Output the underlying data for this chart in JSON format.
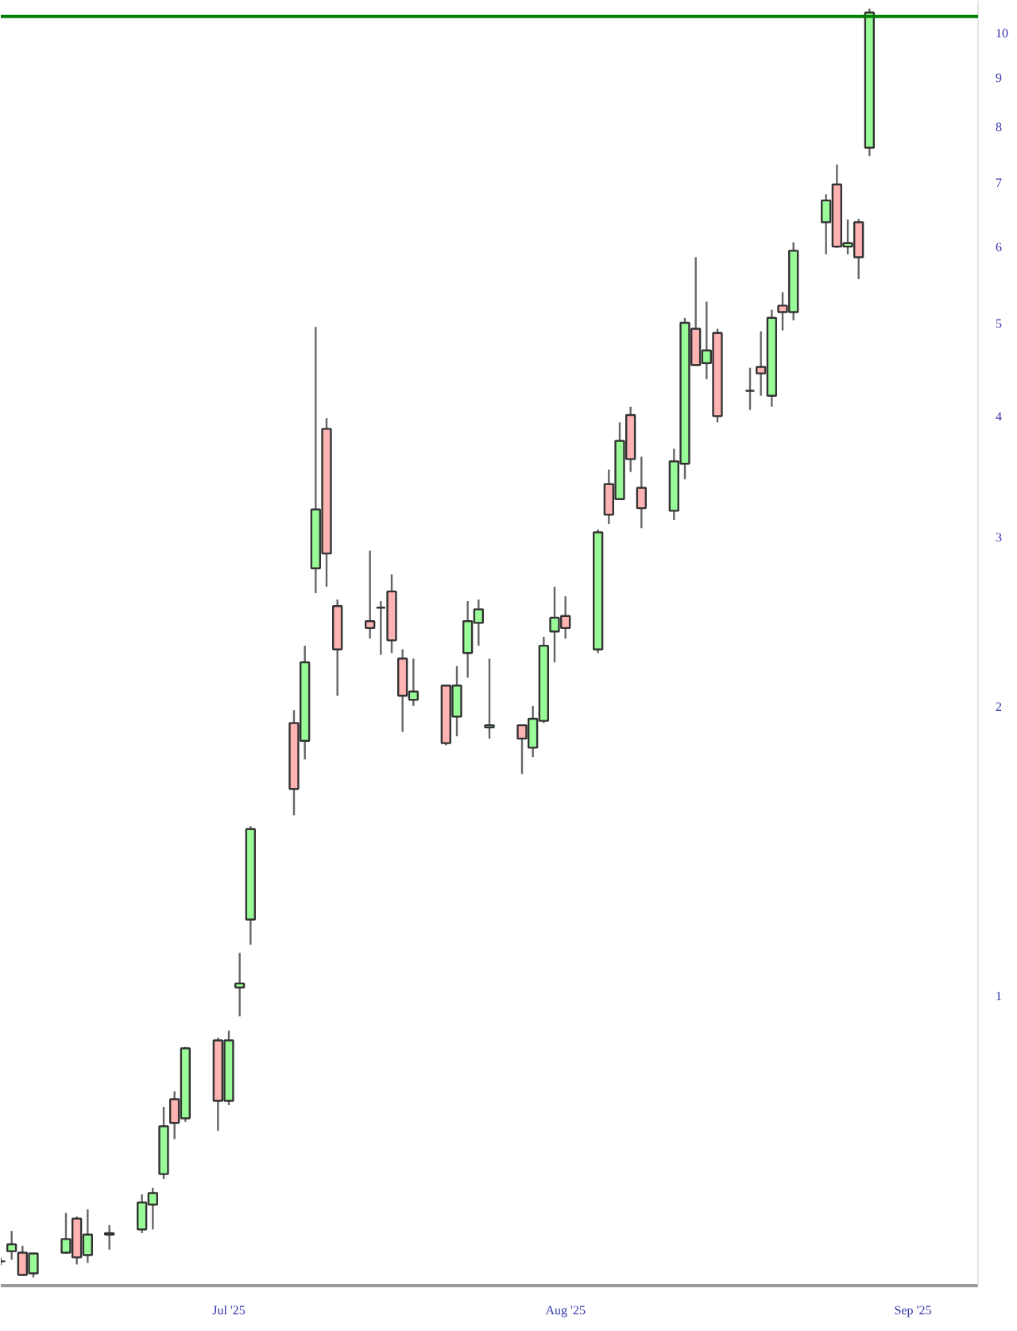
{
  "chart_data": {
    "type": "candlestick",
    "log": true,
    "grid": false,
    "x": [
      "2025-06-10",
      "2025-06-11",
      "2025-06-12",
      "2025-06-13",
      "2025-06-16",
      "2025-06-17",
      "2025-06-18",
      "2025-06-20",
      "2025-06-23",
      "2025-06-24",
      "2025-06-25",
      "2025-06-26",
      "2025-06-27",
      "2025-06-30",
      "2025-07-01",
      "2025-07-02",
      "2025-07-03",
      "2025-07-07",
      "2025-07-08",
      "2025-07-09",
      "2025-07-10",
      "2025-07-11",
      "2025-07-14",
      "2025-07-15",
      "2025-07-16",
      "2025-07-17",
      "2025-07-18",
      "2025-07-21",
      "2025-07-22",
      "2025-07-23",
      "2025-07-24",
      "2025-07-25",
      "2025-07-28",
      "2025-07-29",
      "2025-07-30",
      "2025-07-31",
      "2025-08-01",
      "2025-08-04",
      "2025-08-05",
      "2025-08-06",
      "2025-08-07",
      "2025-08-08",
      "2025-08-11",
      "2025-08-12",
      "2025-08-13",
      "2025-08-14",
      "2025-08-15",
      "2025-08-18",
      "2025-08-19",
      "2025-08-20",
      "2025-08-21",
      "2025-08-22",
      "2025-08-25",
      "2025-08-26",
      "2025-08-27",
      "2025-08-28",
      "2025-08-29"
    ],
    "ohlc": [
      [
        0.53,
        0.535,
        0.525,
        0.53
      ],
      [
        0.543,
        0.57,
        0.532,
        0.552
      ],
      [
        0.541,
        0.55,
        0.512,
        0.513
      ],
      [
        0.515,
        0.54,
        0.51,
        0.54
      ],
      [
        0.541,
        0.595,
        0.54,
        0.559
      ],
      [
        0.587,
        0.59,
        0.526,
        0.535
      ],
      [
        0.538,
        0.6,
        0.528,
        0.565
      ],
      [
        0.565,
        0.578,
        0.545,
        0.567
      ],
      [
        0.572,
        0.622,
        0.567,
        0.61
      ],
      [
        0.607,
        0.632,
        0.572,
        0.624
      ],
      [
        0.653,
        0.767,
        0.645,
        0.732
      ],
      [
        0.781,
        0.796,
        0.71,
        0.738
      ],
      [
        0.746,
        0.885,
        0.74,
        0.882
      ],
      [
        0.899,
        0.905,
        0.724,
        0.778
      ],
      [
        0.778,
        0.92,
        0.77,
        0.899
      ],
      [
        1.02,
        1.108,
        0.952,
        1.03
      ],
      [
        1.2,
        1.5,
        1.13,
        1.49
      ],
      [
        1.92,
        1.98,
        1.54,
        1.64
      ],
      [
        1.84,
        2.31,
        1.76,
        2.22
      ],
      [
        2.78,
        4.95,
        2.62,
        3.2
      ],
      [
        3.88,
        3.98,
        2.66,
        2.88
      ],
      [
        2.54,
        2.58,
        2.05,
        2.29
      ],
      [
        2.45,
        2.9,
        2.35,
        2.41
      ],
      [
        2.53,
        2.57,
        2.26,
        2.53
      ],
      [
        2.63,
        2.74,
        2.27,
        2.34
      ],
      [
        2.24,
        2.29,
        1.88,
        2.05
      ],
      [
        2.03,
        2.24,
        2.0,
        2.07
      ],
      [
        2.1,
        2.1,
        1.82,
        1.83
      ],
      [
        1.95,
        2.2,
        1.86,
        2.1
      ],
      [
        2.27,
        2.57,
        2.14,
        2.45
      ],
      [
        2.44,
        2.58,
        2.31,
        2.52
      ],
      [
        1.9,
        2.24,
        1.85,
        1.91
      ],
      [
        1.91,
        1.91,
        1.7,
        1.85
      ],
      [
        1.81,
        2.0,
        1.77,
        1.94
      ],
      [
        1.93,
        2.36,
        1.92,
        2.31
      ],
      [
        2.39,
        2.66,
        2.22,
        2.47
      ],
      [
        2.48,
        2.6,
        2.35,
        2.41
      ],
      [
        2.29,
        3.05,
        2.27,
        3.03
      ],
      [
        3.4,
        3.52,
        3.09,
        3.16
      ],
      [
        3.28,
        3.94,
        3.28,
        3.77
      ],
      [
        4.01,
        4.09,
        3.5,
        3.61
      ],
      [
        3.37,
        3.63,
        3.06,
        3.21
      ],
      [
        3.19,
        3.7,
        3.12,
        3.59
      ],
      [
        3.57,
        5.06,
        3.44,
        5.0
      ],
      [
        4.93,
        5.85,
        4.52,
        4.52
      ],
      [
        4.54,
        5.26,
        4.37,
        4.68
      ],
      [
        4.88,
        4.93,
        3.94,
        4.0
      ],
      [
        4.25,
        4.49,
        4.06,
        4.25
      ],
      [
        4.5,
        4.9,
        4.2,
        4.43
      ],
      [
        4.2,
        5.16,
        4.09,
        5.06
      ],
      [
        5.21,
        5.38,
        4.91,
        5.13
      ],
      [
        5.13,
        6.06,
        5.03,
        5.94
      ],
      [
        6.36,
        6.8,
        5.89,
        6.7
      ],
      [
        6.96,
        7.3,
        5.98,
        6.0
      ],
      [
        6.0,
        6.4,
        5.89,
        6.05
      ],
      [
        6.36,
        6.41,
        5.55,
        5.85
      ],
      [
        7.6,
        10.6,
        7.45,
        10.5
      ]
    ],
    "xlim": [
      "2025-06-10",
      "2025-09-08"
    ],
    "ylim": [
      0.5,
      10.8
    ],
    "yticks": [
      1,
      2,
      3,
      4,
      5,
      6,
      7,
      8,
      9,
      10
    ],
    "xticks": [
      {
        "value": "2025-07-01",
        "label": "Jul '25"
      },
      {
        "value": "2025-08-01",
        "label": "Aug '25"
      },
      {
        "value": "2025-09-02",
        "label": "Sep '25"
      }
    ],
    "ref_lines": [
      {
        "axis": "y",
        "value": 10.4,
        "color": "#008000"
      }
    ]
  }
}
